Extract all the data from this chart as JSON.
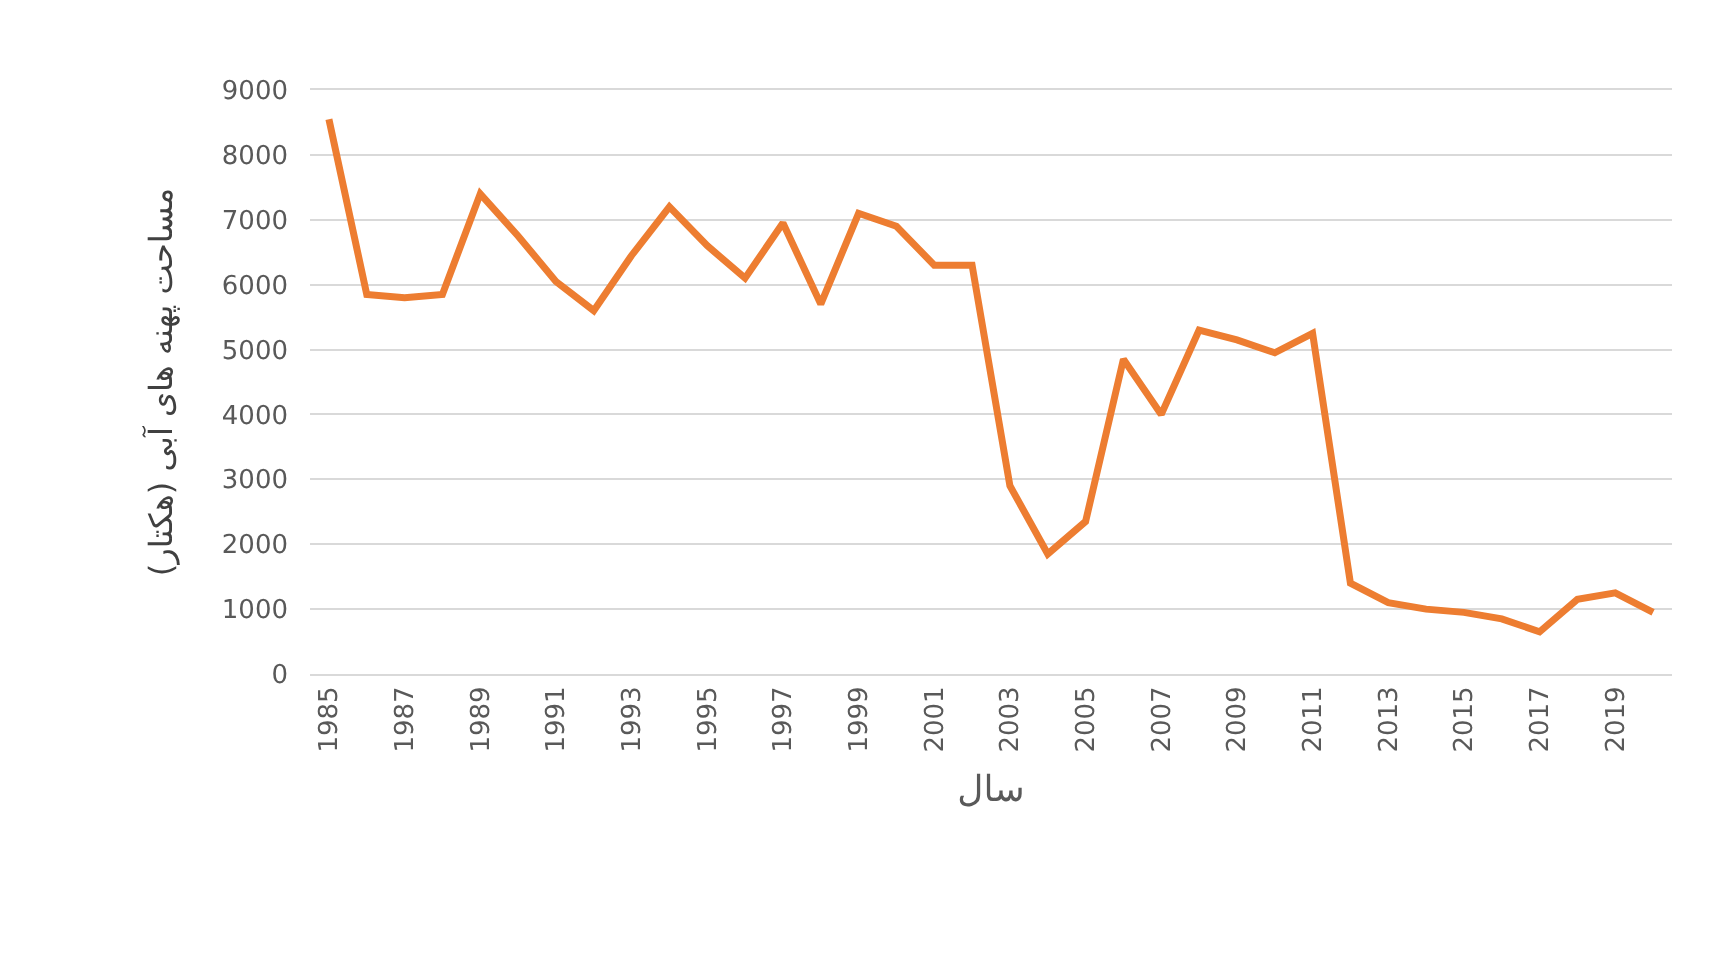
{
  "chart_data": {
    "type": "line",
    "xlabel": "سال",
    "ylabel": "مساحت پهنه های آبی (هکتار)",
    "categories": [
      "1985",
      null,
      "1987",
      null,
      "1989",
      null,
      "1991",
      null,
      "1993",
      null,
      "1995",
      null,
      "1997",
      null,
      "1999",
      null,
      "2001",
      null,
      "2003",
      null,
      "2005",
      null,
      "2007",
      null,
      "2009",
      null,
      "2011",
      null,
      "2013",
      null,
      "2015",
      null,
      "2017",
      null,
      "2019",
      null
    ],
    "series": [
      {
        "color": "#ed7d31",
        "values": [
          8550,
          5850,
          5800,
          5850,
          7400,
          6750,
          6050,
          5600,
          6450,
          7200,
          6600,
          6100,
          6950,
          5700,
          7100,
          6900,
          6300,
          6300,
          2900,
          1850,
          2350,
          4850,
          4000,
          5300,
          5150,
          4950,
          5250,
          1400,
          1100,
          1000,
          950,
          850,
          650,
          1150,
          1250,
          950
        ]
      }
    ],
    "ylim": [
      0,
      9000
    ],
    "yticks": [
      0,
      1000,
      2000,
      3000,
      4000,
      5000,
      6000,
      7000,
      8000,
      9000
    ],
    "grid": "y",
    "marker": "none",
    "line_style": "solid"
  }
}
